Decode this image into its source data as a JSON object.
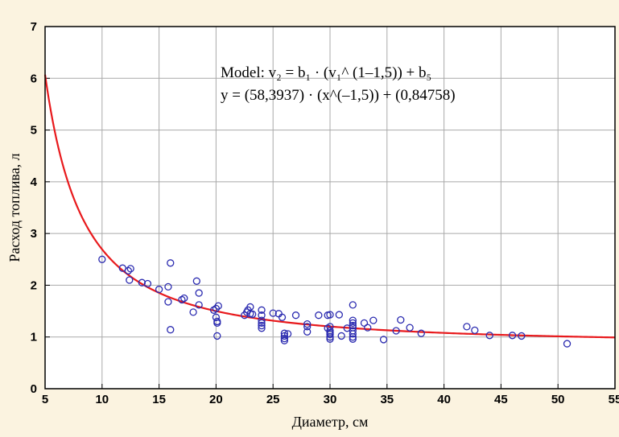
{
  "chart_data": {
    "type": "scatter",
    "title": "",
    "xlabel": "Диаметр, см",
    "ylabel": "Расход топлива, л",
    "xlim": [
      5,
      55
    ],
    "ylim": [
      0,
      7
    ],
    "x_ticks": [
      "5",
      "10",
      "15",
      "20",
      "25",
      "30",
      "35",
      "40",
      "45",
      "50",
      "55"
    ],
    "y_ticks": [
      "0",
      "1",
      "2",
      "3",
      "4",
      "5",
      "6",
      "7"
    ],
    "grid": true,
    "annotations": {
      "model_line1": "Model: v₂ = b₁ · (v₁^ (1–1,5)) + b₅",
      "model_line2": "y = (58,3937) · (x^(–1,5)) + (0,84758)"
    },
    "fit": {
      "label": "y = (58,3937) · (x^(–1,5)) + (0,84758)",
      "a": 58.3937,
      "b": 0.84758,
      "exponent": -1.5,
      "color": "#e8191c"
    },
    "points_color": "#2b2bb0",
    "points": [
      [
        10.0,
        2.5
      ],
      [
        11.8,
        2.33
      ],
      [
        12.3,
        2.28
      ],
      [
        12.5,
        2.32
      ],
      [
        12.4,
        2.1
      ],
      [
        13.5,
        2.05
      ],
      [
        14.0,
        2.03
      ],
      [
        15.0,
        1.92
      ],
      [
        15.8,
        1.97
      ],
      [
        15.8,
        1.68
      ],
      [
        16.0,
        2.43
      ],
      [
        16.0,
        1.14
      ],
      [
        17.0,
        1.72
      ],
      [
        17.2,
        1.75
      ],
      [
        18.0,
        1.48
      ],
      [
        18.3,
        2.08
      ],
      [
        18.5,
        1.85
      ],
      [
        18.5,
        1.62
      ],
      [
        19.8,
        1.52
      ],
      [
        20.0,
        1.55
      ],
      [
        20.2,
        1.6
      ],
      [
        20.0,
        1.38
      ],
      [
        20.1,
        1.3
      ],
      [
        20.1,
        1.27
      ],
      [
        20.1,
        1.02
      ],
      [
        22.5,
        1.42
      ],
      [
        22.7,
        1.48
      ],
      [
        22.8,
        1.52
      ],
      [
        23.0,
        1.58
      ],
      [
        23.0,
        1.45
      ],
      [
        23.2,
        1.44
      ],
      [
        24.0,
        1.52
      ],
      [
        24.0,
        1.42
      ],
      [
        24.0,
        1.32
      ],
      [
        24.0,
        1.27
      ],
      [
        24.0,
        1.22
      ],
      [
        24.0,
        1.17
      ],
      [
        25.0,
        1.46
      ],
      [
        25.5,
        1.45
      ],
      [
        25.8,
        1.38
      ],
      [
        26.0,
        1.07
      ],
      [
        26.0,
        1.02
      ],
      [
        26.0,
        0.97
      ],
      [
        26.0,
        0.93
      ],
      [
        26.3,
        1.06
      ],
      [
        27.0,
        1.42
      ],
      [
        28.0,
        1.25
      ],
      [
        28.0,
        1.2
      ],
      [
        28.0,
        1.1
      ],
      [
        29.0,
        1.42
      ],
      [
        29.8,
        1.42
      ],
      [
        29.8,
        1.17
      ],
      [
        30.0,
        1.43
      ],
      [
        30.0,
        1.2
      ],
      [
        30.0,
        1.12
      ],
      [
        30.0,
        1.08
      ],
      [
        30.0,
        1.05
      ],
      [
        30.0,
        1.0
      ],
      [
        30.0,
        0.96
      ],
      [
        30.8,
        1.43
      ],
      [
        31.0,
        1.02
      ],
      [
        31.5,
        1.17
      ],
      [
        32.0,
        1.62
      ],
      [
        32.0,
        1.32
      ],
      [
        32.0,
        1.27
      ],
      [
        32.0,
        1.22
      ],
      [
        32.0,
        1.18
      ],
      [
        32.0,
        1.12
      ],
      [
        32.0,
        1.06
      ],
      [
        32.0,
        1.0
      ],
      [
        32.0,
        0.96
      ],
      [
        33.0,
        1.27
      ],
      [
        33.3,
        1.18
      ],
      [
        33.8,
        1.32
      ],
      [
        34.7,
        0.95
      ],
      [
        35.8,
        1.12
      ],
      [
        36.2,
        1.33
      ],
      [
        37.0,
        1.18
      ],
      [
        38.0,
        1.07
      ],
      [
        42.0,
        1.2
      ],
      [
        42.7,
        1.13
      ],
      [
        44.0,
        1.03
      ],
      [
        46.0,
        1.03
      ],
      [
        46.8,
        1.02
      ],
      [
        50.8,
        0.87
      ]
    ]
  }
}
